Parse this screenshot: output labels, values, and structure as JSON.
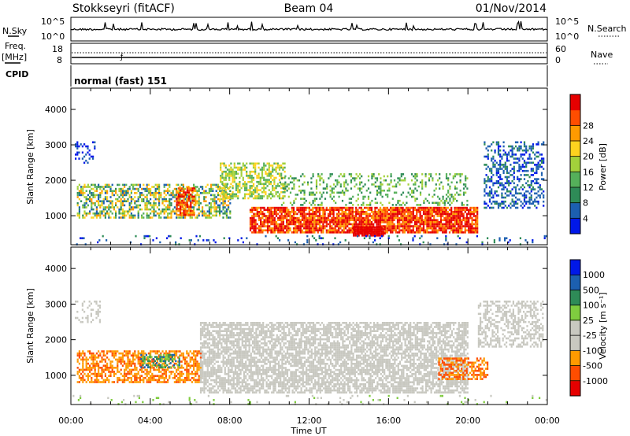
{
  "header": {
    "station": "Stokkseyri (fitACF)",
    "beam": "Beam 04",
    "date": "01/Nov/2014"
  },
  "noise_panel": {
    "left_label": "N.Sky",
    "left_ticks": [
      "10^5",
      "10^0"
    ],
    "right_label": "N.Search",
    "right_ticks": [
      "10^5",
      "10^0"
    ]
  },
  "freq_panel": {
    "left_label_1": "Freq.",
    "left_label_2": "[MHz]",
    "left_ticks": [
      "18",
      "8"
    ],
    "right_label": "Nave",
    "right_ticks": [
      "60",
      "0"
    ]
  },
  "cpid_panel": {
    "label": "CPID",
    "text": "normal (fast) 151"
  },
  "colors": {
    "power_scale": [
      "#0018e8",
      "#1c5fb0",
      "#2e8b57",
      "#55b05a",
      "#a3d13b",
      "#ffd21f",
      "#ff9a00",
      "#ff4d00",
      "#e60000"
    ],
    "velocity_scale": [
      "#e60000",
      "#ff4d00",
      "#ff9a00",
      "#c8c8c0",
      "#c8c8c0",
      "#7fcc3f",
      "#2e8b57",
      "#1c5fb0",
      "#0018e8"
    ]
  },
  "chart_data": [
    {
      "type": "heatmap",
      "quantity": "Power",
      "ylabel": "Slant Range [km]",
      "ylim": [
        180,
        4600
      ],
      "yticks": [
        "1000",
        "2000",
        "3000",
        "4000"
      ],
      "xlim_hours": [
        0,
        24
      ],
      "colorbar": {
        "label": "Power [dB]",
        "range": [
          0,
          32
        ],
        "ticks": [
          "4",
          "8",
          "12",
          "16",
          "20",
          "24",
          "28"
        ]
      },
      "approx_echo_regions": [
        {
          "t": [
            0.3,
            8.0
          ],
          "range_km": [
            950,
            1900
          ],
          "value_db": "8-24"
        },
        {
          "t": [
            5.3,
            6.2
          ],
          "range_km": [
            1000,
            1800
          ],
          "value_db": "20-28"
        },
        {
          "t": [
            7.5,
            10.8
          ],
          "range_km": [
            1500,
            2500
          ],
          "value_db": "12-20"
        },
        {
          "t": [
            9.0,
            20.5
          ],
          "range_km": [
            500,
            1250
          ],
          "value_db": "16-28"
        },
        {
          "t": [
            14.2,
            15.8
          ],
          "range_km": [
            450,
            700
          ],
          "value_db": "28"
        },
        {
          "t": [
            20.8,
            23.8
          ],
          "range_km": [
            1200,
            3100
          ],
          "value_db": "4-12"
        }
      ]
    },
    {
      "type": "heatmap",
      "quantity": "Velocity",
      "ylabel": "Slant Range [km]",
      "ylim": [
        180,
        4600
      ],
      "yticks": [
        "1000",
        "2000",
        "3000",
        "4000"
      ],
      "xlim_hours": [
        0,
        24
      ],
      "colorbar": {
        "label": "Velocity [m s⁻¹]",
        "ticks": [
          "1000",
          "500",
          "100",
          "25",
          "-25",
          "-100",
          "-500",
          "-1000"
        ]
      },
      "approx_echo_regions": [
        {
          "t": [
            0.3,
            6.5
          ],
          "range_km": [
            800,
            1700
          ],
          "value_m_s": "-500 to -100"
        },
        {
          "t": [
            3.5,
            5.5
          ],
          "range_km": [
            1200,
            1600
          ],
          "value_m_s": "100 to 500"
        },
        {
          "t": [
            6.5,
            20.0
          ],
          "range_km": [
            500,
            2500
          ],
          "value_m_s": "-25 to 25"
        },
        {
          "t": [
            18.5,
            21.0
          ],
          "range_km": [
            900,
            1500
          ],
          "value_m_s": "-500 to -100"
        }
      ]
    }
  ],
  "time_axis": {
    "label": "Time UT",
    "ticks": [
      "00:00",
      "04:00",
      "08:00",
      "12:00",
      "16:00",
      "20:00",
      "00:00"
    ]
  }
}
